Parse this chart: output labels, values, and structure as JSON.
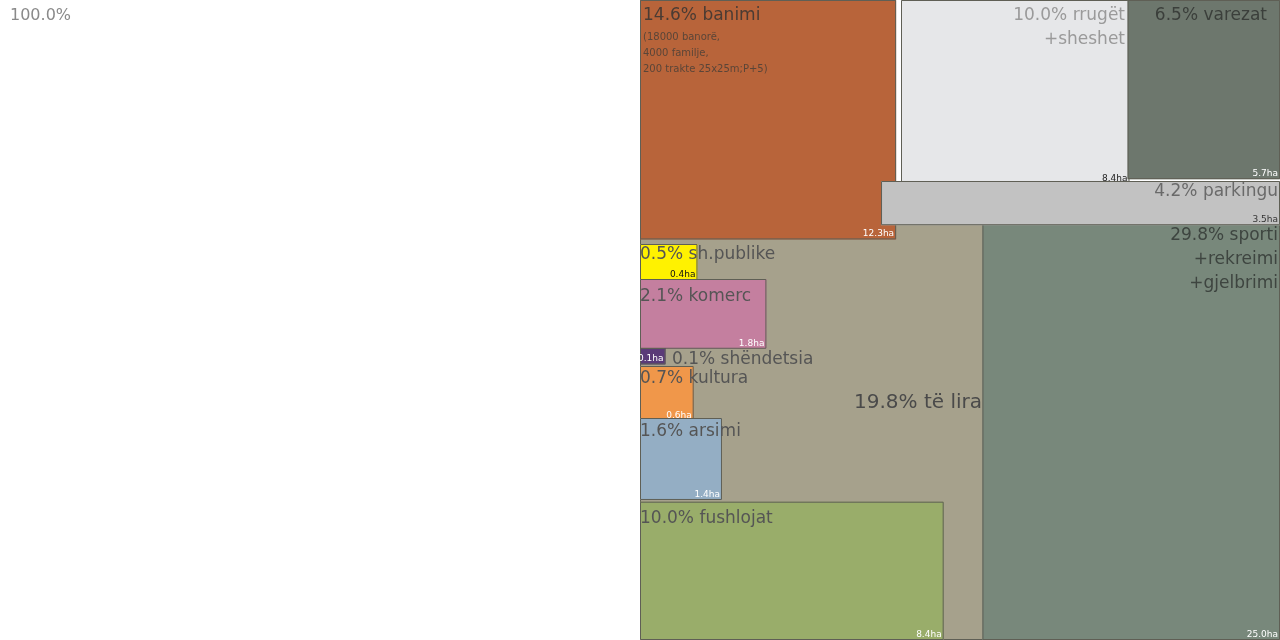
{
  "chart_data": {
    "type": "other",
    "categories": [
      "të lira",
      "banimi",
      "rrugët\n+sheshet",
      "varezat",
      "parkingu",
      "sporti\n+rekreimi\n+gjelbrimi",
      "sh.publike",
      "komerc",
      "shëndetsia",
      "kultura",
      "arsimi",
      "fushlojat"
    ],
    "values": [
      19.8,
      14.6,
      10.0,
      6.5,
      4.2,
      29.8,
      0.5,
      2.1,
      0.1,
      0.7,
      1.6,
      10.0
    ],
    "value_labels": [
      "19.8%",
      "14.6%",
      "10.0%",
      "6.5%",
      "4.2%",
      "29.8%",
      "0.5%",
      "2.1%",
      "0.1%",
      "0.7%",
      "1.6%",
      "10.0%"
    ],
    "colors": [
      "#a6a18c",
      "#b8643a",
      "#e6e7e9",
      "#6d776d",
      "#c2c2c2",
      "#78887b",
      "#fff200",
      "#c47f9f",
      "#5a3a78",
      "#f0974a",
      "#94aec4",
      "#99ad6a"
    ],
    "annotations": [
      "100.0%",
      "(18000 banorë,\n4000 familje,\n200 trakte 25x25m;P+5)",
      "12.3ha",
      "8.4ha",
      "5.7ha",
      "3.5ha",
      "25.0ha",
      "0.4ha",
      "1.8ha",
      "0.1ha",
      "0.6ha",
      "1.4ha",
      "8.4ha"
    ]
  }
}
